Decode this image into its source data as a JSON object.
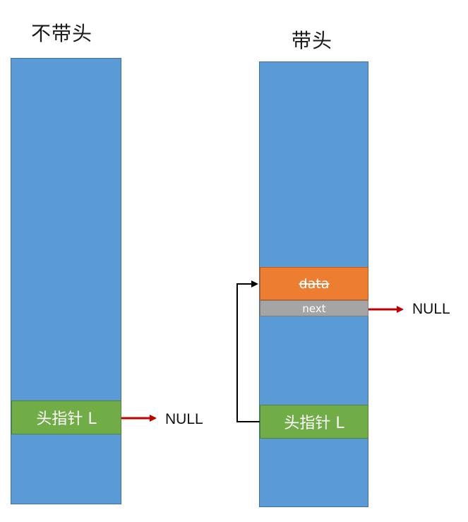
{
  "titles": {
    "no_head": "不带头",
    "with_head": "带头"
  },
  "left_column": {
    "head_pointer_label": "头指针 L",
    "null_label": "NULL"
  },
  "right_column": {
    "data_label": "data",
    "next_label": "next",
    "head_pointer_label": "头指针 L",
    "null_label": "NULL"
  },
  "colors": {
    "memory_block": "#5b9bd5",
    "head_pointer": "#70ad47",
    "data_field": "#ed7d31",
    "next_field": "#a5a5a5",
    "null_arrow": "#c00000",
    "link_arrow": "#000000"
  },
  "icons": [
    "arrow-right-icon",
    "elbow-arrow-icon"
  ]
}
